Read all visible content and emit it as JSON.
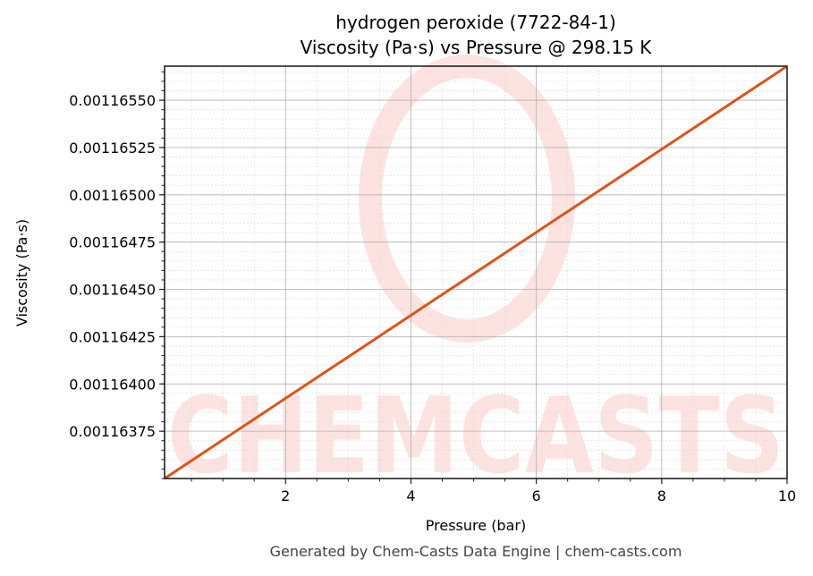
{
  "title": {
    "line1": "hydrogen peroxide (7722-84-1)",
    "line2": "Viscosity (Pa·s) vs Pressure @ 298.15 K"
  },
  "footer": "Generated by Chem-Casts Data Engine | chem-casts.com",
  "watermark": "CHEMCASTS",
  "colors": {
    "line": "#d9541e",
    "watermark": "#fde3e0",
    "grid_major": "#b0b0b0",
    "grid_minor": "#dddddd",
    "axis": "#222222"
  },
  "chart_data": {
    "type": "line",
    "title": "hydrogen peroxide (7722-84-1) Viscosity (Pa·s) vs Pressure @ 298.15 K",
    "xlabel": "Pressure (bar)",
    "ylabel": "Viscosity (Pa·s)",
    "xlim": [
      0.07,
      10
    ],
    "ylim": [
      0.0011635,
      0.00116568
    ],
    "x_ticks": [
      2,
      4,
      6,
      8,
      10
    ],
    "x_tick_labels": [
      "2",
      "4",
      "6",
      "8",
      "10"
    ],
    "y_ticks": [
      0.00116375,
      0.001164,
      0.00116425,
      0.0011645,
      0.00116475,
      0.001165,
      0.00116525,
      0.0011655
    ],
    "y_tick_labels": [
      "0.00116375",
      "0.00116400",
      "0.00116425",
      "0.00116450",
      "0.00116475",
      "0.00116500",
      "0.00116525",
      "0.00116550"
    ],
    "grid": true,
    "legend": null,
    "series": [
      {
        "name": "Viscosity",
        "x": [
          0.07,
          10
        ],
        "y": [
          0.0011635,
          0.00116568
        ]
      }
    ]
  }
}
